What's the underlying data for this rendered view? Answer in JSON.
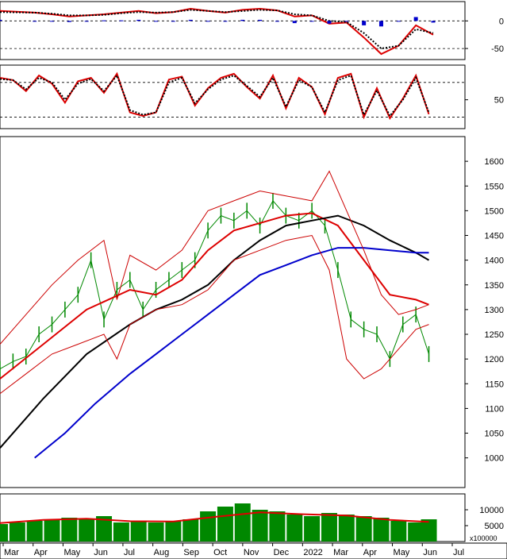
{
  "chart_data": {
    "type": "line",
    "title": "",
    "x_axis": {
      "labels": [
        "Mar",
        "Apr",
        "May",
        "Jun",
        "Jul",
        "Aug",
        "Sep",
        "Oct",
        "Nov",
        "Dec",
        "2022",
        "Mar",
        "Apr",
        "May",
        "Jun",
        "Jul"
      ]
    },
    "panels": [
      {
        "name": "macd",
        "ylim": [
          -70,
          35
        ],
        "yticks": [
          "0",
          "-50"
        ],
        "reference_lines": [
          0,
          -50
        ],
        "series": [
          {
            "role": "macd",
            "color": "#dd0000",
            "x": [
              0,
              8,
              12,
              16,
              20,
              24,
              28,
              32,
              36,
              40,
              44,
              48,
              52,
              56,
              60,
              64,
              68,
              72,
              76,
              80,
              84,
              88,
              92,
              96,
              100
            ],
            "values": [
              18,
              15,
              12,
              8,
              10,
              12,
              15,
              18,
              14,
              16,
              22,
              18,
              15,
              20,
              22,
              19,
              8,
              10,
              -5,
              -3,
              -30,
              -60,
              -45,
              -8,
              -25
            ]
          },
          {
            "role": "signal",
            "color": "#000000",
            "x": [
              0,
              8,
              12,
              16,
              20,
              24,
              28,
              32,
              36,
              40,
              44,
              48,
              52,
              56,
              60,
              64,
              68,
              72,
              76,
              80,
              84,
              88,
              92,
              96,
              100
            ],
            "values": [
              16,
              15,
              13,
              10,
              10,
              11,
              14,
              16,
              15,
              16,
              20,
              18,
              16,
              18,
              20,
              19,
              12,
              10,
              0,
              -2,
              -22,
              -50,
              -45,
              -15,
              -22
            ]
          },
          {
            "role": "histogram",
            "color": "#0000cc",
            "x": [
              0,
              8,
              12,
              16,
              20,
              24,
              28,
              32,
              36,
              40,
              44,
              48,
              52,
              56,
              60,
              64,
              68,
              72,
              76,
              80,
              84,
              88,
              92,
              96,
              100
            ],
            "values": [
              2,
              0,
              -1,
              -2,
              0,
              1,
              1,
              2,
              -1,
              0,
              2,
              0,
              -1,
              2,
              2,
              0,
              -4,
              0,
              -5,
              -1,
              -8,
              -10,
              0,
              7,
              -3
            ]
          }
        ]
      },
      {
        "name": "stochastic",
        "ylim": [
          0,
          110
        ],
        "yticks": [
          "50"
        ],
        "reference_lines": [
          80,
          20
        ],
        "series": [
          {
            "role": "k",
            "color": "#dd0000",
            "x": [
              0,
              3,
              6,
              9,
              12,
              15,
              18,
              21,
              24,
              27,
              30,
              33,
              36,
              39,
              42,
              45,
              48,
              51,
              54,
              57,
              60,
              63,
              66,
              69,
              72,
              75,
              78,
              81,
              84,
              87,
              90,
              93,
              96,
              99
            ],
            "values": [
              88,
              84,
              65,
              92,
              78,
              45,
              82,
              88,
              62,
              95,
              28,
              22,
              28,
              85,
              90,
              40,
              70,
              88,
              95,
              72,
              52,
              92,
              35,
              88,
              72,
              25,
              88,
              95,
              20,
              70,
              18,
              52,
              92,
              25
            ]
          },
          {
            "role": "d",
            "color": "#000000",
            "x": [
              0,
              3,
              6,
              9,
              12,
              15,
              18,
              21,
              24,
              27,
              30,
              33,
              36,
              39,
              42,
              45,
              48,
              51,
              54,
              57,
              60,
              63,
              66,
              69,
              72,
              75,
              78,
              81,
              84,
              87,
              90,
              93,
              96,
              99
            ],
            "values": [
              86,
              84,
              68,
              88,
              80,
              50,
              78,
              86,
              65,
              92,
              32,
              24,
              28,
              80,
              88,
              44,
              68,
              85,
              92,
              74,
              55,
              88,
              38,
              84,
              72,
              28,
              84,
              92,
              24,
              66,
              22,
              50,
              88,
              28
            ]
          }
        ]
      },
      {
        "name": "price",
        "ylim": [
          940,
          1650
        ],
        "yticks": [
          "1600",
          "1550",
          "1500",
          "1450",
          "1400",
          "1350",
          "1300",
          "1250",
          "1200",
          "1150",
          "1100",
          "1050",
          "1000"
        ],
        "series": [
          {
            "role": "price",
            "color": "#008800",
            "x": [
              0,
              3,
              6,
              9,
              12,
              15,
              18,
              21,
              24,
              27,
              30,
              33,
              36,
              39,
              42,
              45,
              48,
              51,
              54,
              57,
              60,
              63,
              66,
              69,
              72,
              75,
              78,
              81,
              84,
              87,
              90,
              93,
              96,
              99
            ],
            "values": [
              1180,
              1195,
              1205,
              1250,
              1270,
              1300,
              1330,
              1400,
              1280,
              1340,
              1360,
              1300,
              1340,
              1360,
              1380,
              1400,
              1460,
              1490,
              1480,
              1500,
              1470,
              1520,
              1490,
              1480,
              1500,
              1470,
              1380,
              1280,
              1260,
              1250,
              1200,
              1270,
              1290,
              1210
            ]
          },
          {
            "role": "ma20",
            "color": "#dd0000",
            "x": [
              0,
              10,
              20,
              30,
              36,
              42,
              48,
              54,
              60,
              66,
              72,
              78,
              84,
              90,
              96,
              99
            ],
            "values": [
              1160,
              1230,
              1300,
              1340,
              1330,
              1360,
              1420,
              1460,
              1475,
              1490,
              1495,
              1470,
              1400,
              1330,
              1320,
              1310
            ]
          },
          {
            "role": "ma50",
            "color": "#000000",
            "x": [
              0,
              10,
              20,
              30,
              36,
              42,
              48,
              54,
              60,
              66,
              72,
              78,
              84,
              90,
              96,
              99
            ],
            "values": [
              1020,
              1120,
              1210,
              1270,
              1300,
              1320,
              1350,
              1400,
              1440,
              1470,
              1480,
              1490,
              1470,
              1440,
              1415,
              1400
            ]
          },
          {
            "role": "ma200",
            "color": "#0000cc",
            "x": [
              8,
              15,
              22,
              30,
              36,
              42,
              48,
              54,
              60,
              66,
              72,
              78,
              84,
              90,
              96,
              99
            ],
            "values": [
              1000,
              1050,
              1110,
              1170,
              1210,
              1250,
              1290,
              1330,
              1370,
              1390,
              1410,
              1425,
              1425,
              1420,
              1415,
              1415
            ]
          },
          {
            "role": "bollinger_upper",
            "color": "#cc0000",
            "x": [
              0,
              6,
              12,
              18,
              24,
              27,
              30,
              36,
              42,
              48,
              54,
              60,
              66,
              72,
              76,
              80,
              84,
              88,
              92,
              96,
              99
            ],
            "values": [
              1230,
              1290,
              1350,
              1400,
              1440,
              1320,
              1410,
              1380,
              1420,
              1500,
              1520,
              1540,
              1530,
              1520,
              1580,
              1500,
              1420,
              1330,
              1290,
              1300,
              1310
            ]
          },
          {
            "role": "bollinger_lower",
            "color": "#cc0000",
            "x": [
              0,
              6,
              12,
              18,
              24,
              27,
              30,
              36,
              42,
              48,
              54,
              60,
              66,
              72,
              76,
              80,
              84,
              88,
              92,
              96,
              99
            ],
            "values": [
              1130,
              1170,
              1210,
              1230,
              1250,
              1200,
              1270,
              1300,
              1310,
              1340,
              1400,
              1420,
              1440,
              1450,
              1380,
              1200,
              1160,
              1180,
              1220,
              1260,
              1270
            ]
          }
        ]
      },
      {
        "name": "volume",
        "ylim": [
          0,
          15000
        ],
        "yticks": [
          "10000",
          "5000"
        ],
        "unit_label": "x100000",
        "series": [
          {
            "role": "volume",
            "color": "#008800",
            "type": "bar",
            "x": [
              0,
              4,
              8,
              12,
              16,
              20,
              24,
              28,
              32,
              36,
              40,
              44,
              48,
              52,
              56,
              60,
              64,
              68,
              72,
              76,
              80,
              84,
              88,
              92,
              96,
              99
            ],
            "values": [
              5500,
              6000,
              6500,
              7000,
              7500,
              7000,
              8000,
              6000,
              6200,
              6000,
              6500,
              7000,
              9500,
              11000,
              12000,
              10000,
              9500,
              8500,
              8000,
              9000,
              8500,
              8000,
              7500,
              6500,
              6000,
              7000
            ]
          },
          {
            "role": "volume_ma",
            "color": "#dd0000",
            "x": [
              0,
              10,
              20,
              30,
              40,
              50,
              60,
              70,
              80,
              90,
              99
            ],
            "values": [
              5800,
              6800,
              7200,
              6400,
              6300,
              7800,
              9200,
              8600,
              8200,
              6800,
              6200
            ]
          }
        ]
      }
    ]
  }
}
